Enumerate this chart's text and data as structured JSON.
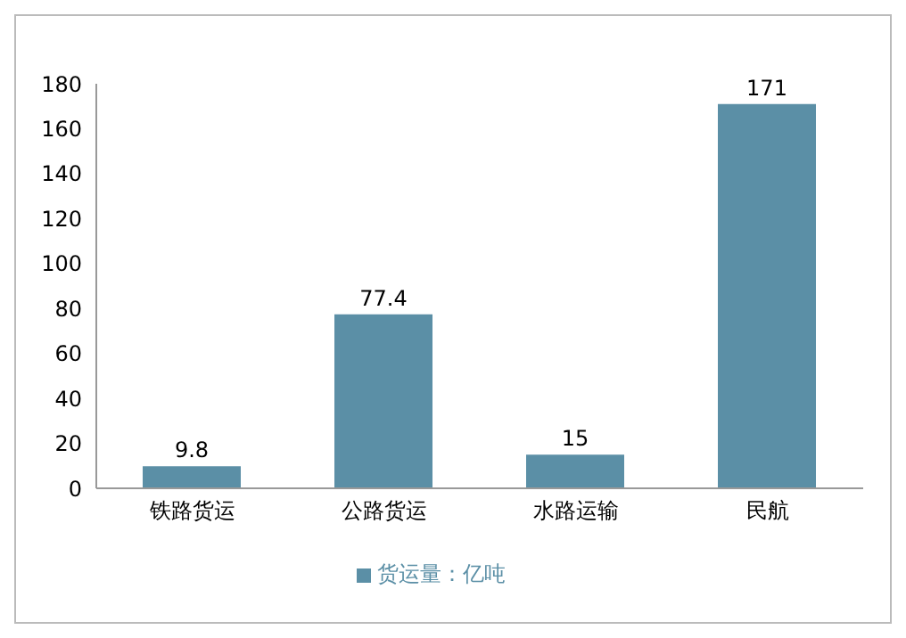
{
  "chart_data": {
    "type": "bar",
    "categories": [
      "铁路货运",
      "公路货运",
      "水路运输",
      "民航"
    ],
    "series": [
      {
        "name": "货运量：亿吨",
        "color": "#5b8fa6",
        "values": [
          9.8,
          77.4,
          15,
          171
        ]
      }
    ],
    "ylim": [
      0,
      180
    ],
    "yticks": [
      0,
      20,
      40,
      60,
      80,
      100,
      120,
      140,
      160,
      180
    ],
    "grid": false,
    "legend": "bottom",
    "data_labels": true
  }
}
